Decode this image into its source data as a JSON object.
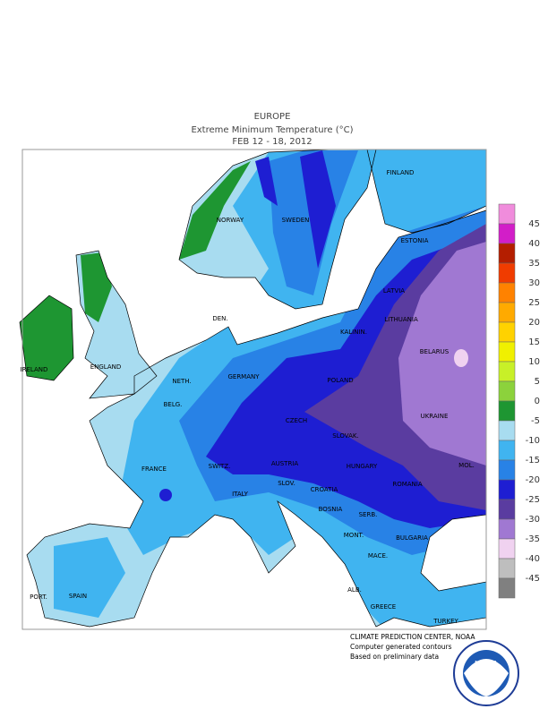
{
  "header": {
    "region": "EUROPE",
    "title": "Extreme Minimum Temperature (°C)",
    "dates": "FEB 12 - 18, 2012"
  },
  "legend": {
    "ticks": [
      45,
      40,
      35,
      30,
      25,
      20,
      15,
      10,
      5,
      0,
      -5,
      -10,
      -15,
      -20,
      -25,
      -30,
      -35,
      -40,
      -45
    ],
    "colors": [
      "#f08cdc",
      "#d21ec8",
      "#b41e00",
      "#f03c00",
      "#ff8200",
      "#ffaa00",
      "#ffd200",
      "#f0f000",
      "#c8f028",
      "#8cd23c",
      "#1e9632",
      "#a8dcf0",
      "#40b4f0",
      "#2882e6",
      "#1e1ed2",
      "#5a3ca0",
      "#a078d2",
      "#f0d2f0",
      "#bebebe",
      "#808080"
    ]
  },
  "labels": [
    "FINLAND",
    "NORWAY",
    "SWEDEN",
    "ESTONIA",
    "LATVIA",
    "DEN.",
    "LITHUANIA",
    "KALININ.",
    "IRELAND",
    "ENGLAND",
    "NETH.",
    "GERMANY",
    "POLAND",
    "BELARUS",
    "BELG.",
    "CZECH",
    "UKRAINE",
    "SLOVAK.",
    "FRANCE",
    "SWITZ.",
    "AUSTRIA",
    "HUNGARY",
    "MOL.",
    "SLOV.",
    "CROATIA",
    "ROMANIA",
    "ITALY",
    "BOSNIA",
    "SERB.",
    "MONT.",
    "BULGARIA",
    "PORT.",
    "SPAIN",
    "ALB.",
    "MACE.",
    "GREECE",
    "TURKEY"
  ],
  "footer": [
    "CLIMATE PREDICTION CENTER, NOAA",
    "Computer generated contours",
    "Based on preliminary data"
  ],
  "logo": "NOAA"
}
